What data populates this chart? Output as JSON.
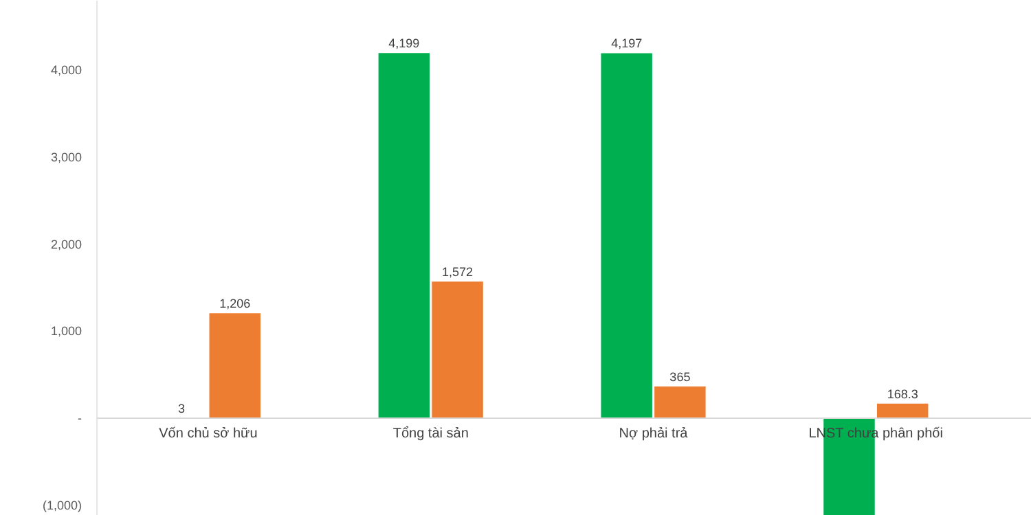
{
  "chart_data": {
    "type": "bar",
    "categories": [
      "Vốn chủ sở hữu",
      "Tổng tài sản",
      "Nợ phải trả",
      "LNST chưa phân phối"
    ],
    "series": [
      {
        "color": "#00b050",
        "values": [
          3,
          4199,
          4197,
          -1120
        ],
        "value_labels": [
          "3",
          "4,199",
          "4,197",
          null
        ]
      },
      {
        "color": "#ed7d31",
        "values": [
          1206,
          1572,
          365,
          168.3
        ],
        "value_labels": [
          "1,206",
          "1,572",
          "365",
          "168.3"
        ]
      }
    ],
    "ylim": [
      -1120,
      4800
    ],
    "yticks": [
      {
        "value": -1000,
        "label": "(1,000)"
      },
      {
        "value": 0,
        "label": "-"
      },
      {
        "value": 1000,
        "label": "1,000"
      },
      {
        "value": 2000,
        "label": "2,000"
      },
      {
        "value": 3000,
        "label": "3,000"
      },
      {
        "value": 4000,
        "label": "4,000"
      }
    ],
    "grid": false
  }
}
